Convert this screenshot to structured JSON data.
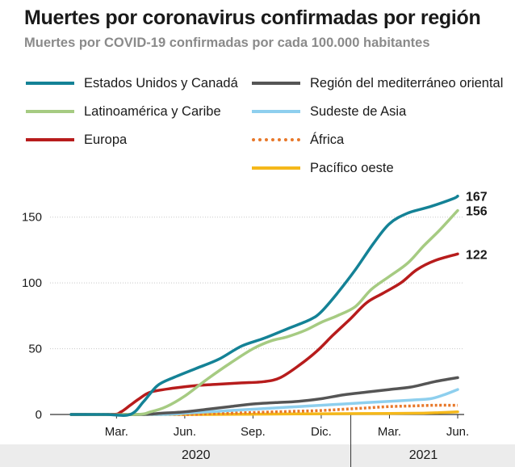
{
  "title": "Muertes por coronavirus confirmadas por región",
  "subtitle": "Muertes por COVID-19 confirmadas por cada 100.000 habitantes",
  "chart_data": {
    "type": "line",
    "yticks": [
      0,
      50,
      100,
      150
    ],
    "ylim": [
      0,
      175
    ],
    "xlim": [
      0,
      17
    ],
    "xtick_labels": [
      {
        "x": 2,
        "label": "Mar."
      },
      {
        "x": 5,
        "label": "Jun."
      },
      {
        "x": 8,
        "label": "Sep."
      },
      {
        "x": 11,
        "label": "Dic."
      },
      {
        "x": 14,
        "label": "Mar."
      },
      {
        "x": 17,
        "label": "Jun."
      }
    ],
    "years": [
      {
        "label": "2020",
        "x": 5.5
      },
      {
        "label": "2021",
        "x": 15.5
      }
    ],
    "year_divider_x": 12.3,
    "series": [
      {
        "name": "Estados Unidos y Canadá",
        "color": "#148296",
        "style": "solid",
        "end_label": "167",
        "x": [
          0,
          1.5,
          2.6,
          3.2,
          3.8,
          4.5,
          5.5,
          6.5,
          7.5,
          8.5,
          9.5,
          10.5,
          11.0,
          11.7,
          12.5,
          13.3,
          14.0,
          14.8,
          15.8,
          16.8,
          17.0
        ],
        "y": [
          0,
          0,
          0,
          10,
          22,
          28,
          35,
          42,
          52,
          58,
          65,
          72,
          78,
          92,
          110,
          130,
          145,
          153,
          158,
          164,
          166
        ]
      },
      {
        "name": "Latinoamérica y Caribe",
        "color": "#a6cb82",
        "style": "solid",
        "end_label": "156",
        "x": [
          0,
          2.8,
          3.5,
          4.2,
          5.0,
          6.0,
          7.0,
          8.0,
          8.8,
          9.5,
          10.3,
          11.0,
          11.7,
          12.5,
          13.2,
          14.0,
          14.8,
          15.5,
          16.2,
          17.0
        ],
        "y": [
          0,
          0,
          2,
          6,
          14,
          27,
          39,
          50,
          56,
          59,
          64,
          70,
          75,
          82,
          95,
          105,
          115,
          128,
          140,
          155
        ]
      },
      {
        "name": "Europa",
        "color": "#b71c1c",
        "style": "solid",
        "end_label": "122",
        "x": [
          0,
          1.8,
          2.2,
          2.6,
          3.0,
          3.5,
          4.5,
          5.5,
          6.5,
          7.5,
          8.5,
          9.2,
          10.0,
          10.8,
          11.5,
          12.3,
          13.0,
          13.7,
          14.5,
          15.2,
          16.0,
          17.0
        ],
        "y": [
          0,
          0,
          2,
          7,
          12,
          17,
          20,
          22,
          23,
          24,
          25,
          28,
          37,
          48,
          60,
          73,
          85,
          92,
          100,
          110,
          117,
          122
        ]
      },
      {
        "name": "Región del mediterráneo oriental",
        "color": "#555555",
        "style": "solid",
        "x": [
          0,
          3.0,
          4.0,
          5.0,
          6.0,
          7.0,
          8.0,
          9.0,
          10.0,
          11.0,
          12.0,
          13.0,
          14.0,
          15.0,
          16.0,
          17.0
        ],
        "y": [
          0,
          0,
          1,
          2,
          4,
          6,
          8,
          9,
          10,
          12,
          15,
          17,
          19,
          21,
          25,
          28
        ]
      },
      {
        "name": "Sudeste de Asia",
        "color": "#8ecfee",
        "style": "solid",
        "x": [
          0,
          4.0,
          5.0,
          6.0,
          7.0,
          8.0,
          9.0,
          10.0,
          11.0,
          12.0,
          13.0,
          14.0,
          15.0,
          15.8,
          16.4,
          17.0
        ],
        "y": [
          0,
          0,
          1,
          2,
          3,
          4,
          5,
          6,
          7,
          8,
          9,
          10,
          11,
          12,
          15,
          19
        ]
      },
      {
        "name": "África",
        "color": "#e8782a",
        "style": "dotted",
        "x": [
          0,
          5.0,
          6.0,
          7.0,
          8.0,
          9.0,
          10.0,
          11.0,
          12.0,
          13.0,
          14.0,
          15.0,
          16.0,
          17.0
        ],
        "y": [
          0,
          0,
          0.5,
          1,
          1.5,
          2,
          2.5,
          3,
          4,
          5,
          6,
          6.5,
          7,
          7
        ]
      },
      {
        "name": "Pacífico oeste",
        "color": "#f5b81a",
        "style": "solid",
        "x": [
          0,
          6.0,
          8.0,
          10.0,
          12.0,
          14.0,
          15.5,
          16.3,
          17.0
        ],
        "y": [
          0,
          0,
          0.2,
          0.4,
          0.6,
          0.8,
          1,
          1.5,
          2
        ]
      }
    ]
  }
}
